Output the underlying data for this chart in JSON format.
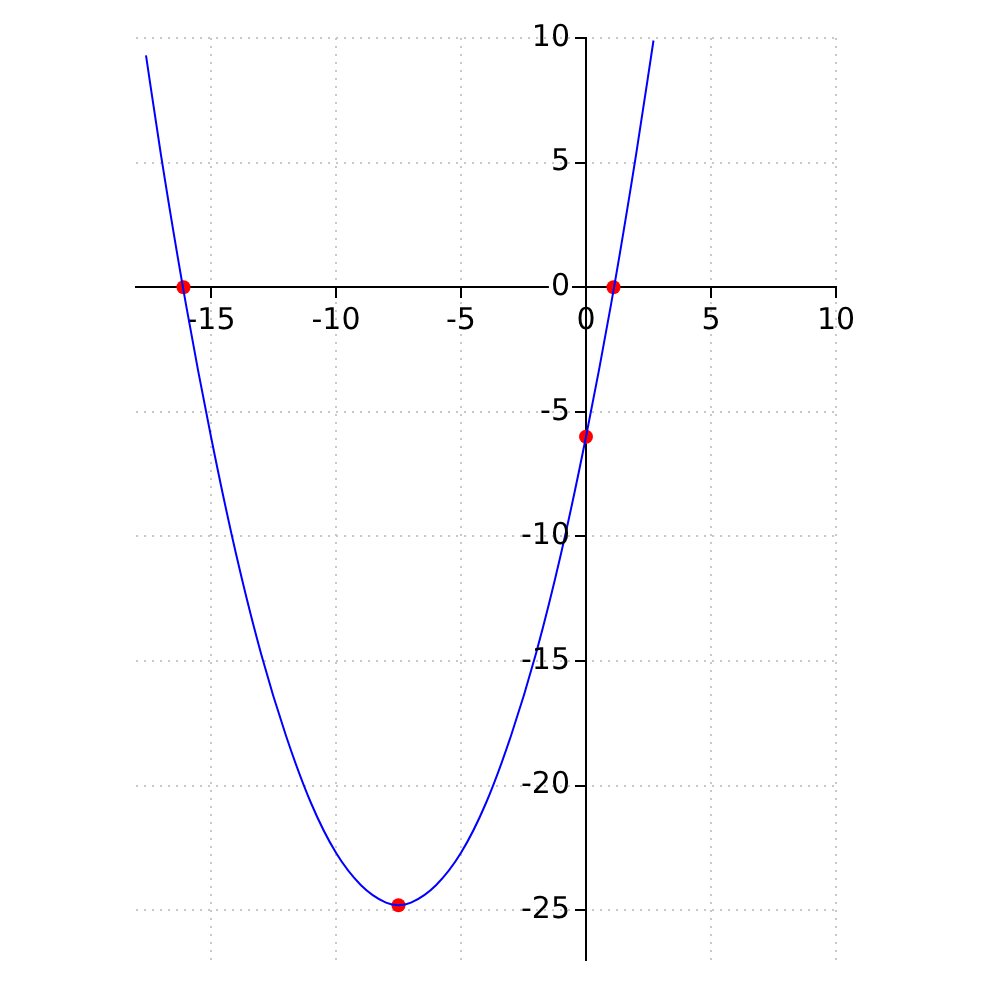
{
  "chart_data": {
    "type": "line",
    "grid": true,
    "xlim": [
      -18,
      10
    ],
    "ylim": [
      -27,
      10
    ],
    "xticks": [
      -15,
      -10,
      -5,
      0,
      5,
      10
    ],
    "yticks": [
      -25,
      -20,
      -15,
      -10,
      -5,
      0,
      5,
      10
    ],
    "series": [
      {
        "type": "line",
        "color": "#0000ff",
        "marker": "none",
        "x": [
          -17.6,
          -17,
          -16,
          -15,
          -14,
          -13,
          -12,
          -11,
          -10,
          -9,
          -8,
          -7.5,
          -7,
          -6,
          -5,
          -4,
          -3,
          -2,
          -1,
          0,
          1,
          2,
          2.7
        ],
        "values": [
          9.3,
          5.3,
          -0.7,
          -6,
          -10.7,
          -14.7,
          -18,
          -20.7,
          -22.7,
          -24,
          -24.7,
          -24.8,
          -24.7,
          -24,
          -22.7,
          -20.7,
          -18,
          -14.7,
          -10.7,
          -6,
          -0.7,
          5.3,
          9.9
        ]
      },
      {
        "type": "scatter",
        "color": "#ff0000",
        "marker": "circle",
        "x": [
          -16.1,
          1.1,
          0,
          -7.5
        ],
        "values": [
          0,
          0,
          -6,
          -24.8
        ]
      }
    ]
  }
}
